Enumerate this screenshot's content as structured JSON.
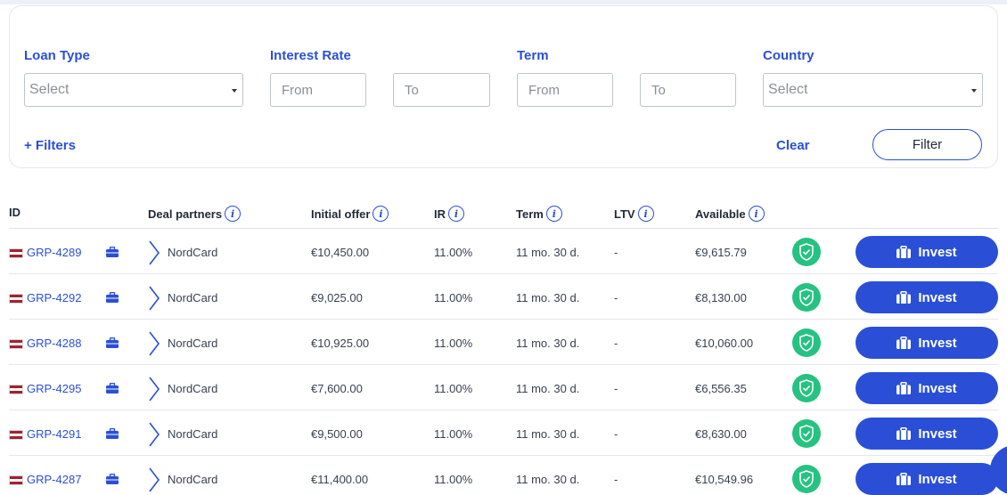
{
  "filters": {
    "loan_type": {
      "label": "Loan Type",
      "placeholder": "Select"
    },
    "interest_rate": {
      "label": "Interest Rate",
      "from_placeholder": "From",
      "to_placeholder": "To"
    },
    "term": {
      "label": "Term",
      "from_placeholder": "From",
      "to_placeholder": "To"
    },
    "country": {
      "label": "Country",
      "placeholder": "Select"
    },
    "more_filters_label": "+ Filters",
    "clear_label": "Clear",
    "filter_button_label": "Filter"
  },
  "table": {
    "headers": {
      "id": "ID",
      "deal_partners": "Deal partners",
      "initial_offer": "Initial offer",
      "ir": "IR",
      "term": "Term",
      "ltv": "LTV",
      "available": "Available"
    },
    "invest_label": "Invest",
    "rows": [
      {
        "id": "GRP-4289",
        "partner": "NordCard",
        "initial_offer": "€10,450.00",
        "ir": "11.00%",
        "term": "11 mo. 30 d.",
        "ltv": "-",
        "available": "€9,615.79"
      },
      {
        "id": "GRP-4292",
        "partner": "NordCard",
        "initial_offer": "€9,025.00",
        "ir": "11.00%",
        "term": "11 mo. 30 d.",
        "ltv": "-",
        "available": "€8,130.00"
      },
      {
        "id": "GRP-4288",
        "partner": "NordCard",
        "initial_offer": "€10,925.00",
        "ir": "11.00%",
        "term": "11 mo. 30 d.",
        "ltv": "-",
        "available": "€10,060.00"
      },
      {
        "id": "GRP-4295",
        "partner": "NordCard",
        "initial_offer": "€7,600.00",
        "ir": "11.00%",
        "term": "11 mo. 30 d.",
        "ltv": "-",
        "available": "€6,556.35"
      },
      {
        "id": "GRP-4291",
        "partner": "NordCard",
        "initial_offer": "€9,500.00",
        "ir": "11.00%",
        "term": "11 mo. 30 d.",
        "ltv": "-",
        "available": "€8,630.00"
      },
      {
        "id": "GRP-4287",
        "partner": "NordCard",
        "initial_offer": "€11,400.00",
        "ir": "11.00%",
        "term": "11 mo. 30 d.",
        "ltv": "-",
        "available": "€10,549.96"
      }
    ]
  },
  "colors": {
    "accent": "#2a4fd6",
    "shield": "#25c281",
    "flag_red": "#a2222e"
  }
}
